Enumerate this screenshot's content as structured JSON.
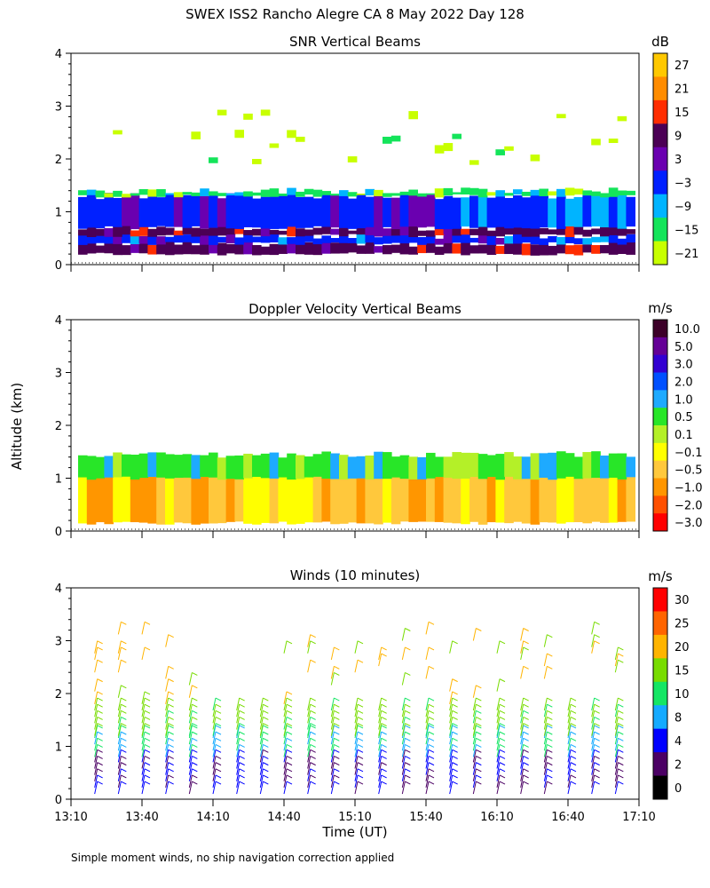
{
  "figure": {
    "title": "SWEX ISS2 Rancho Alegre CA   8 May 2022 Day 128",
    "ylabel": "Altitude (km)",
    "xlabel": "Time (UT)",
    "footnote": "Simple moment winds, no ship navigation correction applied"
  },
  "chart_data": [
    {
      "type": "heatmap",
      "title": "SNR Vertical Beams",
      "xlim": [
        "13:10",
        "17:10"
      ],
      "ylim": [
        0,
        4
      ],
      "yticks": [
        "0",
        "1",
        "2",
        "3",
        "4"
      ],
      "colorbar": {
        "unit": "dB",
        "labels": [
          "27",
          "21",
          "15",
          "9",
          "3",
          "−3",
          "−9",
          "−15",
          "−21"
        ],
        "colors": [
          "#ffc800",
          "#ff8c00",
          "#ff2d00",
          "#4b0055",
          "#6a00b0",
          "#0020ff",
          "#00b4ff",
          "#14e45a",
          "#c8ff00"
        ]
      },
      "layers": [
        {
          "from_km": 0.2,
          "to_km": 0.4,
          "value_db": 9
        },
        {
          "from_km": 0.4,
          "to_km": 0.55,
          "value_db": -3
        },
        {
          "from_km": 0.55,
          "to_km": 0.7,
          "value_db": 9
        },
        {
          "from_km": 0.7,
          "to_km": 1.3,
          "value_db": -3
        },
        {
          "from_km": 1.3,
          "to_km": 1.4,
          "value_db": -15
        },
        {
          "from_km": 1.8,
          "to_km": 2.9,
          "value_db": -21
        }
      ]
    },
    {
      "type": "heatmap",
      "title": "Doppler Velocity Vertical Beams",
      "xlim": [
        "13:10",
        "17:10"
      ],
      "ylim": [
        0,
        4
      ],
      "yticks": [
        "0",
        "1",
        "2",
        "3",
        "4"
      ],
      "colorbar": {
        "unit": "m/s",
        "labels": [
          "10.0",
          "5.0",
          "3.0",
          "2.0",
          "1.0",
          "0.5",
          "0.1",
          "−0.1",
          "−0.5",
          "−1.0",
          "−2.0",
          "−3.0"
        ],
        "colors": [
          "#3c0028",
          "#640096",
          "#3200d2",
          "#0050ff",
          "#1eaaff",
          "#28e628",
          "#b4f028",
          "#ffff00",
          "#ffc83c",
          "#ff9600",
          "#ff5000",
          "#ff0000"
        ]
      },
      "layers": [
        {
          "from_km": 0.15,
          "to_km": 1.35,
          "value_ms": -0.5
        },
        {
          "from_km": 1.0,
          "to_km": 1.45,
          "value_ms": 0.5
        }
      ]
    },
    {
      "type": "wind_barbs",
      "title": "Winds (10 minutes)",
      "xlim": [
        "13:10",
        "17:10"
      ],
      "ylim": [
        0,
        4
      ],
      "yticks": [
        "0",
        "1",
        "2",
        "3",
        "4"
      ],
      "xticks": [
        "13:10",
        "13:40",
        "14:10",
        "14:40",
        "15:10",
        "15:40",
        "16:10",
        "16:40",
        "17:10"
      ],
      "interval_minutes": 10,
      "colorbar": {
        "unit": "m/s",
        "labels": [
          "30",
          "25",
          "20",
          "15",
          "10",
          "8",
          "4",
          "2",
          "0"
        ],
        "colors": [
          "#ff0000",
          "#ff6400",
          "#ffb400",
          "#78dc00",
          "#14e664",
          "#14aaff",
          "#0000ff",
          "#4b0064",
          "#000000"
        ]
      },
      "speed_by_altitude_ms": [
        {
          "from_km": 0.1,
          "to_km": 0.8,
          "speed_ms": 3
        },
        {
          "from_km": 0.8,
          "to_km": 1.2,
          "speed_ms": 9
        },
        {
          "from_km": 1.2,
          "to_km": 1.8,
          "speed_ms": 14
        },
        {
          "from_km": 1.8,
          "to_km": 3.2,
          "speed_ms": 18
        }
      ]
    }
  ]
}
